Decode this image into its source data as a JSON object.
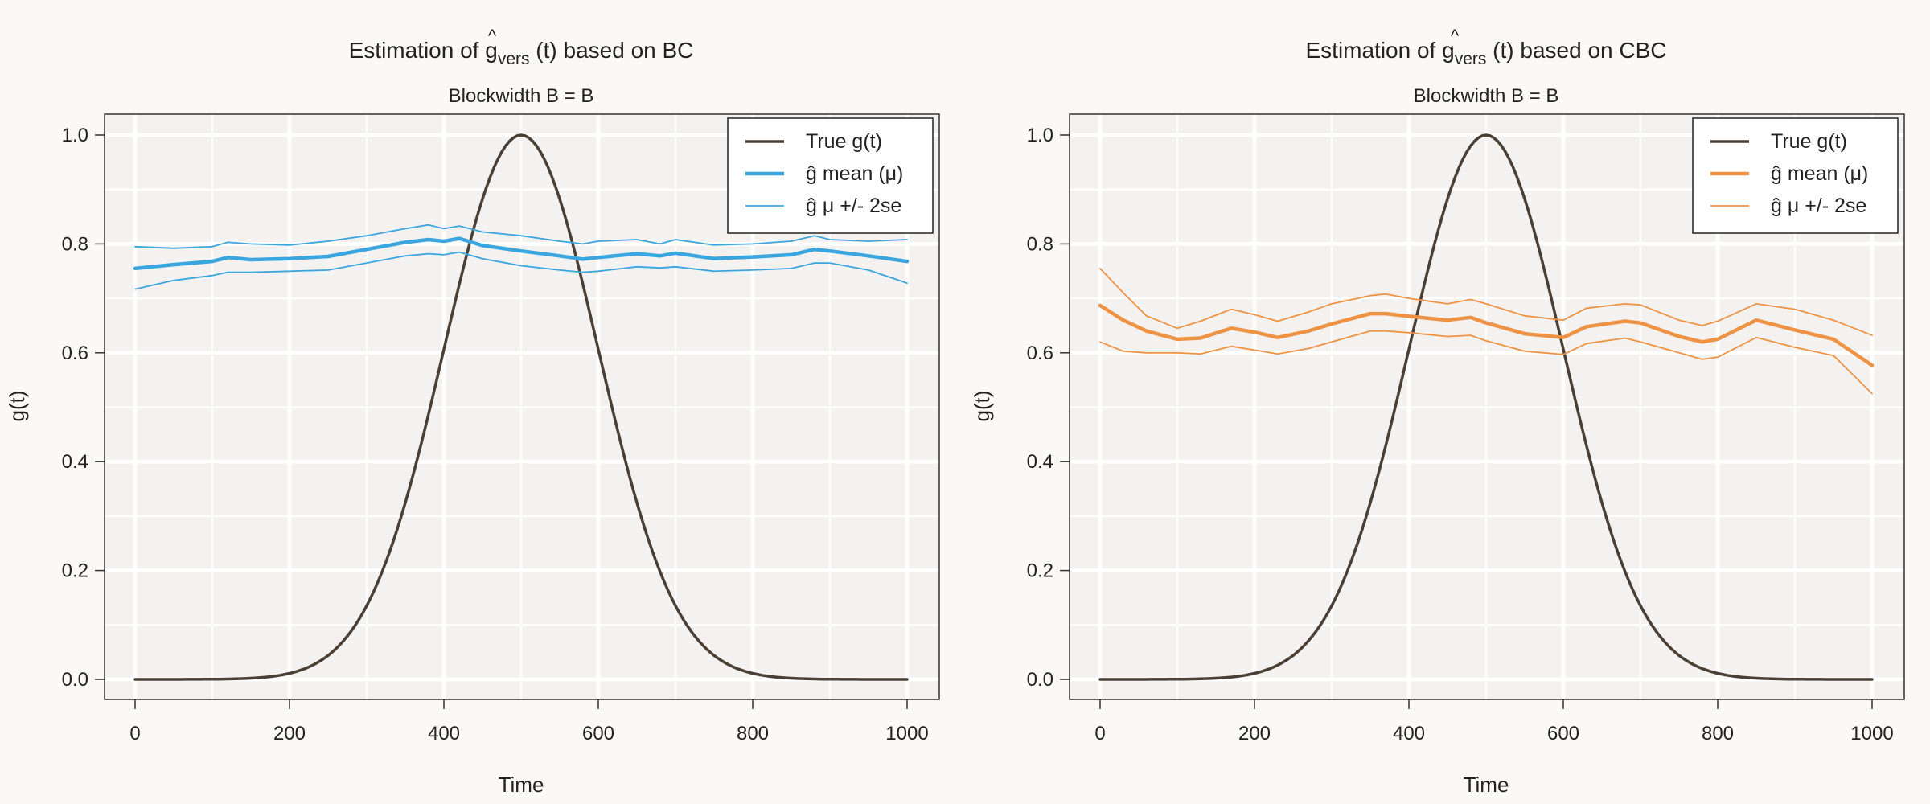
{
  "chart_data": [
    {
      "type": "line",
      "title": "Estimation of ĝ_vers (t) based on BC",
      "title_parts": {
        "prefix": "Estimation of ",
        "symbol": "g",
        "subscript": "vers",
        "suffix": " (t) based on BC"
      },
      "subtitle": "Blockwidth B = B",
      "xlabel": "Time",
      "ylabel": "g(t)",
      "xlim": [
        0,
        1000
      ],
      "ylim": [
        0,
        1
      ],
      "xticks": [
        "0",
        "200",
        "400",
        "600",
        "800",
        "1000"
      ],
      "yticks": [
        "0.0",
        "0.2",
        "0.4",
        "0.6",
        "0.8",
        "1.0"
      ],
      "grid": true,
      "legend_position": "top-right",
      "colors": {
        "true": "#4a3f35",
        "estimate": "#3aa6dd"
      },
      "legend": [
        {
          "label": "True g(t)",
          "style": "true"
        },
        {
          "label": "ĝ mean (μ)",
          "style": "mean"
        },
        {
          "label": "ĝ μ +/- 2se",
          "style": "band"
        }
      ],
      "series": [
        {
          "name": "True g(t)",
          "role": "true",
          "function": "gaussian",
          "center": 500,
          "sd": 100,
          "peak": 1.0
        },
        {
          "name": "ĝ mean (μ)",
          "role": "mean",
          "x": [
            0,
            50,
            100,
            120,
            150,
            200,
            250,
            300,
            350,
            380,
            400,
            420,
            450,
            500,
            550,
            580,
            600,
            650,
            680,
            700,
            750,
            800,
            850,
            880,
            900,
            950,
            1000
          ],
          "y": [
            0.755,
            0.762,
            0.768,
            0.775,
            0.771,
            0.773,
            0.777,
            0.79,
            0.803,
            0.808,
            0.805,
            0.81,
            0.797,
            0.787,
            0.778,
            0.772,
            0.775,
            0.782,
            0.778,
            0.783,
            0.773,
            0.776,
            0.78,
            0.79,
            0.787,
            0.778,
            0.768
          ]
        },
        {
          "name": "ĝ μ + 2se",
          "role": "band",
          "x": [
            0,
            50,
            100,
            120,
            150,
            200,
            250,
            300,
            350,
            380,
            400,
            420,
            450,
            500,
            550,
            580,
            600,
            650,
            680,
            700,
            750,
            800,
            850,
            880,
            900,
            950,
            1000
          ],
          "y": [
            0.795,
            0.792,
            0.795,
            0.803,
            0.8,
            0.798,
            0.805,
            0.815,
            0.828,
            0.835,
            0.828,
            0.833,
            0.822,
            0.815,
            0.805,
            0.8,
            0.805,
            0.808,
            0.8,
            0.808,
            0.798,
            0.8,
            0.805,
            0.815,
            0.808,
            0.805,
            0.808
          ]
        },
        {
          "name": "ĝ μ - 2se",
          "role": "band",
          "x": [
            0,
            50,
            100,
            120,
            150,
            200,
            250,
            300,
            350,
            380,
            400,
            420,
            450,
            500,
            550,
            580,
            600,
            650,
            680,
            700,
            750,
            800,
            850,
            880,
            900,
            950,
            1000
          ],
          "y": [
            0.717,
            0.733,
            0.742,
            0.748,
            0.748,
            0.75,
            0.752,
            0.765,
            0.778,
            0.782,
            0.78,
            0.785,
            0.773,
            0.76,
            0.752,
            0.748,
            0.75,
            0.758,
            0.756,
            0.758,
            0.75,
            0.752,
            0.755,
            0.765,
            0.765,
            0.752,
            0.728
          ]
        }
      ]
    },
    {
      "type": "line",
      "title": "Estimation of ĝ_vers (t) based on CBC",
      "title_parts": {
        "prefix": "Estimation of ",
        "symbol": "g",
        "subscript": "vers",
        "suffix": " (t) based on CBC"
      },
      "subtitle": "Blockwidth B = B",
      "xlabel": "Time",
      "ylabel": "g(t)",
      "xlim": [
        0,
        1000
      ],
      "ylim": [
        0,
        1
      ],
      "xticks": [
        "0",
        "200",
        "400",
        "600",
        "800",
        "1000"
      ],
      "yticks": [
        "0.0",
        "0.2",
        "0.4",
        "0.6",
        "0.8",
        "1.0"
      ],
      "grid": true,
      "legend_position": "top-right",
      "colors": {
        "true": "#4a3f35",
        "estimate": "#ee9344"
      },
      "legend": [
        {
          "label": "True g(t)",
          "style": "true"
        },
        {
          "label": "ĝ mean (μ)",
          "style": "mean"
        },
        {
          "label": "ĝ μ +/- 2se",
          "style": "band"
        }
      ],
      "series": [
        {
          "name": "True g(t)",
          "role": "true",
          "function": "gaussian",
          "center": 500,
          "sd": 100,
          "peak": 1.0
        },
        {
          "name": "ĝ mean (μ)",
          "role": "mean",
          "x": [
            0,
            30,
            60,
            100,
            130,
            170,
            200,
            230,
            270,
            300,
            350,
            370,
            400,
            450,
            480,
            500,
            550,
            600,
            630,
            680,
            700,
            750,
            780,
            800,
            850,
            900,
            950,
            1000
          ],
          "y": [
            0.687,
            0.66,
            0.64,
            0.625,
            0.627,
            0.645,
            0.638,
            0.628,
            0.64,
            0.653,
            0.672,
            0.672,
            0.667,
            0.66,
            0.665,
            0.655,
            0.635,
            0.628,
            0.648,
            0.658,
            0.655,
            0.63,
            0.62,
            0.625,
            0.66,
            0.642,
            0.625,
            0.577
          ]
        },
        {
          "name": "ĝ μ + 2se",
          "role": "band",
          "x": [
            0,
            30,
            60,
            100,
            130,
            170,
            200,
            230,
            270,
            300,
            350,
            370,
            400,
            450,
            480,
            500,
            550,
            600,
            630,
            680,
            700,
            750,
            780,
            800,
            850,
            900,
            950,
            1000
          ],
          "y": [
            0.755,
            0.71,
            0.668,
            0.645,
            0.658,
            0.68,
            0.67,
            0.658,
            0.675,
            0.69,
            0.705,
            0.708,
            0.7,
            0.69,
            0.698,
            0.69,
            0.668,
            0.66,
            0.682,
            0.69,
            0.688,
            0.66,
            0.65,
            0.658,
            0.69,
            0.68,
            0.66,
            0.632
          ]
        },
        {
          "name": "ĝ μ - 2se",
          "role": "band",
          "x": [
            0,
            30,
            60,
            100,
            130,
            170,
            200,
            230,
            270,
            300,
            350,
            370,
            400,
            450,
            480,
            500,
            550,
            600,
            630,
            680,
            700,
            750,
            780,
            800,
            850,
            900,
            950,
            1000
          ],
          "y": [
            0.62,
            0.603,
            0.6,
            0.6,
            0.598,
            0.612,
            0.605,
            0.598,
            0.608,
            0.62,
            0.64,
            0.64,
            0.637,
            0.63,
            0.632,
            0.622,
            0.603,
            0.597,
            0.617,
            0.627,
            0.62,
            0.6,
            0.588,
            0.592,
            0.628,
            0.61,
            0.595,
            0.525
          ]
        }
      ]
    }
  ]
}
